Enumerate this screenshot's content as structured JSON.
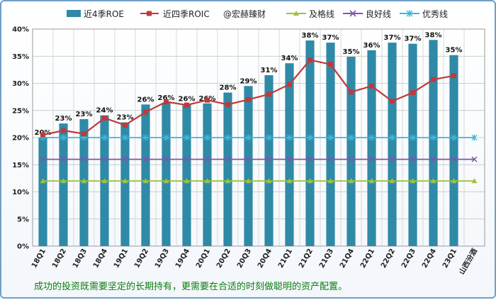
{
  "caption": "成功的投资既需要坚定的长期持有，更需要在合适的时刻做聪明的资产配置。",
  "colors": {
    "bar": "#2f8aa7",
    "line_roic": "#c0393b",
    "pass_line": "#9dc33b",
    "good_line": "#7f56a6",
    "excellent_line": "#3db7d6"
  },
  "chart_data": {
    "type": "bar",
    "categories": [
      "18Q1",
      "18Q2",
      "18Q3",
      "18Q4",
      "19Q1",
      "19Q2",
      "19Q3",
      "19Q4",
      "20Q1",
      "20Q2",
      "20Q3",
      "20Q4",
      "21Q1",
      "21Q2",
      "21Q3",
      "21Q4",
      "22Q1",
      "22Q2",
      "22Q3",
      "22Q4",
      "23Q1",
      "山西汾酒"
    ],
    "ylim": [
      0,
      40
    ],
    "yticks": [
      "0%",
      "5%",
      "10%",
      "15%",
      "20%",
      "25%",
      "30%",
      "35%",
      "40%"
    ],
    "grid": true,
    "legend_position": "top",
    "series": [
      {
        "name": "近4季ROE",
        "type": "bar",
        "values": [
          20,
          22.6,
          23.4,
          24.1,
          22.8,
          26.1,
          26.4,
          26.2,
          26.3,
          28.3,
          29.5,
          31.5,
          33.7,
          37.9,
          37.5,
          34.9,
          36.1,
          37.5,
          37.3,
          38.0,
          35.2,
          null
        ],
        "labels": [
          "20%",
          "23%",
          "23%",
          "24%",
          "23%",
          "26%",
          "26%",
          "26%",
          "26%",
          "28%",
          "29%",
          "31%",
          "34%",
          "38%",
          "37%",
          "35%",
          "36%",
          "37%",
          "37%",
          "38%",
          "35%",
          ""
        ]
      },
      {
        "name": "近四季ROIC",
        "type": "line",
        "values": [
          20.5,
          21.3,
          20.7,
          23.6,
          22.3,
          24.7,
          26.6,
          26.0,
          26.9,
          26.1,
          27.0,
          28.0,
          29.8,
          34.3,
          33.5,
          28.4,
          29.5,
          26.7,
          28.3,
          30.7,
          31.4,
          null
        ]
      },
      {
        "name": "及格线",
        "type": "line",
        "values": [
          12,
          12,
          12,
          12,
          12,
          12,
          12,
          12,
          12,
          12,
          12,
          12,
          12,
          12,
          12,
          12,
          12,
          12,
          12,
          12,
          12,
          12
        ]
      },
      {
        "name": "良好线",
        "type": "line",
        "values": [
          16,
          16,
          16,
          16,
          16,
          16,
          16,
          16,
          16,
          16,
          16,
          16,
          16,
          16,
          16,
          16,
          16,
          16,
          16,
          16,
          16,
          16
        ]
      },
      {
        "name": "优秀线",
        "type": "line",
        "values": [
          20,
          20,
          20,
          20,
          20,
          20,
          20,
          20,
          20,
          20,
          20,
          20,
          20,
          20,
          20,
          20,
          20,
          20,
          20,
          20,
          20,
          20
        ]
      }
    ],
    "legend": {
      "roe": "近4季ROE",
      "roic": "近四季ROIC",
      "watermark": "@宏赫臻财",
      "pass": "及格线",
      "good": "良好线",
      "excellent": "优秀线"
    }
  }
}
